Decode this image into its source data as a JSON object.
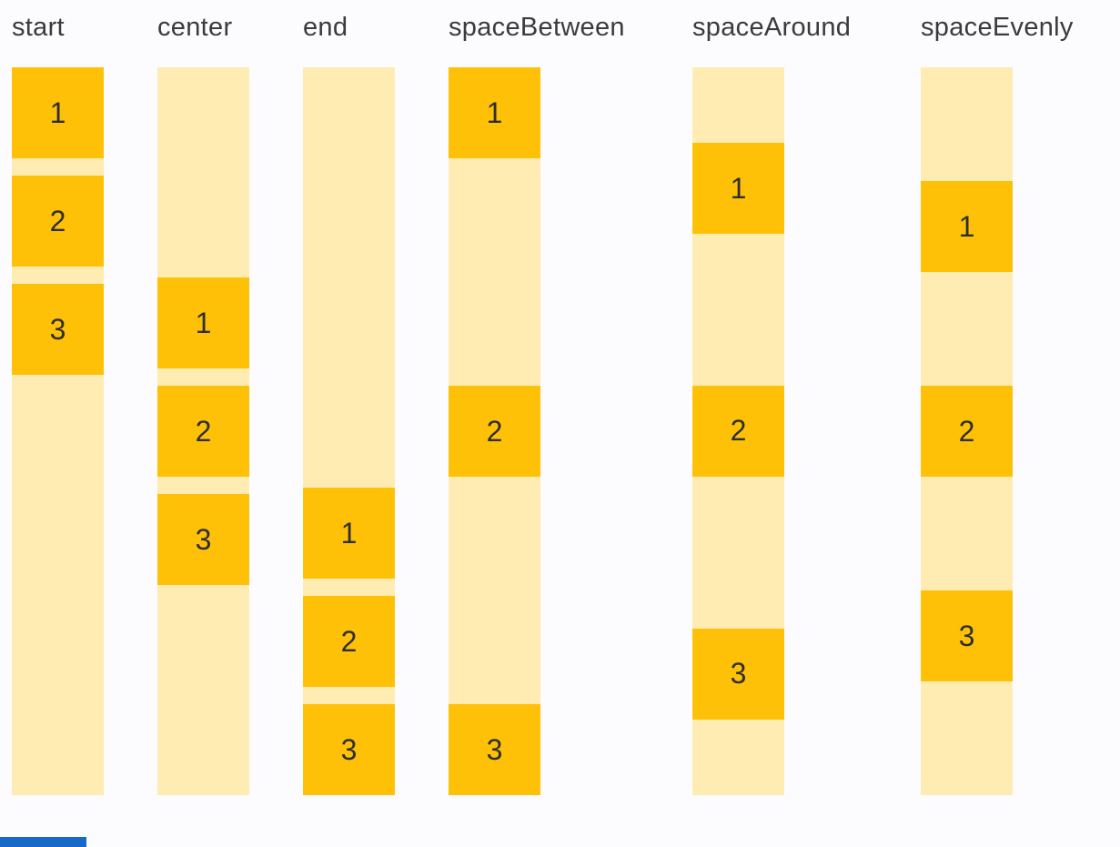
{
  "page": {
    "background_color": "#fcfcfe"
  },
  "demo": {
    "item_color": "#ffc107",
    "track_color": "#ffecb3",
    "label_color": "#3b3b3b",
    "number_color": "#2e2e2e",
    "columns": [
      {
        "label": "start",
        "alignment": "start",
        "items": [
          "1",
          "2",
          "3"
        ]
      },
      {
        "label": "center",
        "alignment": "center",
        "items": [
          "1",
          "2",
          "3"
        ]
      },
      {
        "label": "end",
        "alignment": "end",
        "items": [
          "1",
          "2",
          "3"
        ]
      },
      {
        "label": "spaceBetween",
        "alignment": "spaceBetween",
        "items": [
          "1",
          "2",
          "3"
        ]
      },
      {
        "label": "spaceAround",
        "alignment": "spaceAround",
        "items": [
          "1",
          "2",
          "3"
        ]
      },
      {
        "label": "spaceEvenly",
        "alignment": "spaceEvenly",
        "items": [
          "1",
          "2",
          "3"
        ]
      }
    ]
  },
  "status_bar": {
    "color": "#1669c9"
  }
}
